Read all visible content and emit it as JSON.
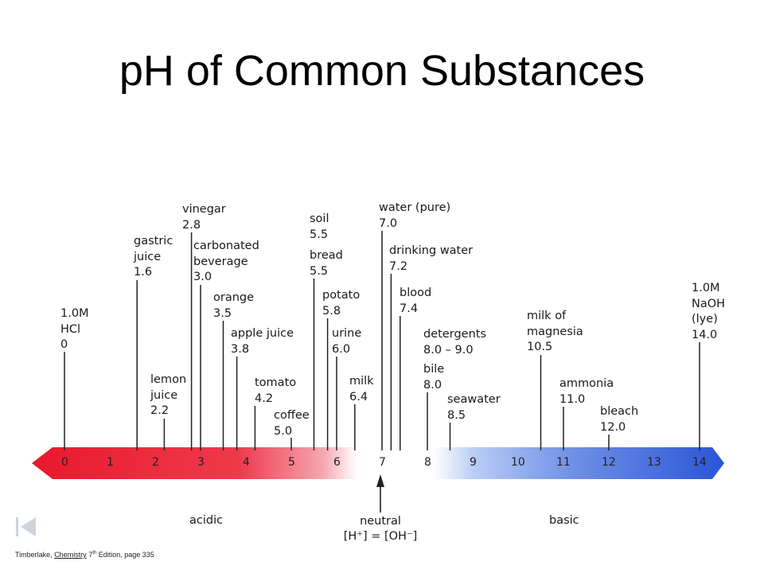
{
  "title": "pH of Common Substances",
  "scale": {
    "ticks": [
      "0",
      "1",
      "2",
      "3",
      "4",
      "5",
      "6",
      "7",
      "8",
      "9",
      "10",
      "11",
      "12",
      "13",
      "14"
    ],
    "regions": {
      "acidic": "acidic",
      "basic": "basic"
    },
    "neutral": {
      "line1": "neutral",
      "line2": "[H⁺] = [OH⁻]"
    }
  },
  "substances": [
    {
      "id": "hcl",
      "text": "1.0M\nHCl\n0",
      "ph": 0
    },
    {
      "id": "gastric",
      "text": "gastric\njuice\n1.6",
      "ph": 1.6
    },
    {
      "id": "lemon",
      "text": "lemon\njuice\n2.2",
      "ph": 2.2
    },
    {
      "id": "vinegar",
      "text": "vinegar\n2.8",
      "ph": 2.8
    },
    {
      "id": "carbonated",
      "text": "carbonated\nbeverage\n3.0",
      "ph": 3.0
    },
    {
      "id": "orange",
      "text": "orange\n3.5",
      "ph": 3.5
    },
    {
      "id": "apple",
      "text": "apple juice\n3.8",
      "ph": 3.8
    },
    {
      "id": "tomato",
      "text": "tomato\n4.2",
      "ph": 4.2
    },
    {
      "id": "coffee",
      "text": "coffee\n5.0",
      "ph": 5.0
    },
    {
      "id": "soil",
      "text": "soil\n5.5",
      "ph": 5.5
    },
    {
      "id": "bread",
      "text": "bread\n5.5",
      "ph": 5.5
    },
    {
      "id": "potato",
      "text": "potato\n5.8",
      "ph": 5.8
    },
    {
      "id": "urine",
      "text": "urine\n6.0",
      "ph": 6.0
    },
    {
      "id": "milk",
      "text": "milk\n6.4",
      "ph": 6.4
    },
    {
      "id": "water",
      "text": "water (pure)\n7.0",
      "ph": 7.0
    },
    {
      "id": "drinking",
      "text": "drinking water\n7.2",
      "ph": 7.2
    },
    {
      "id": "blood",
      "text": "blood\n7.4",
      "ph": 7.4
    },
    {
      "id": "detergents",
      "text": "detergents\n8.0 – 9.0",
      "ph": 8.0
    },
    {
      "id": "bile",
      "text": "bile\n8.0",
      "ph": 8.0
    },
    {
      "id": "seawater",
      "text": "seawater\n8.5",
      "ph": 8.5
    },
    {
      "id": "milkmag",
      "text": "milk of\nmagnesia\n10.5",
      "ph": 10.5
    },
    {
      "id": "ammonia",
      "text": "ammonia\n11.0",
      "ph": 11.0
    },
    {
      "id": "bleach",
      "text": "bleach\n12.0",
      "ph": 12.0
    },
    {
      "id": "naoh",
      "text": "1.0M\nNaOH\n(lye)\n14.0",
      "ph": 14.0
    }
  ],
  "footer": {
    "author": "Timberlake, ",
    "book": "Chemistry",
    "edition": " 7",
    "edition_sup": "th",
    "rest": " Edition, page 335"
  },
  "colors": {
    "acid": "#e8192c",
    "base": "#2a55d6",
    "neutral": "#ffffff",
    "line": "#222222"
  }
}
